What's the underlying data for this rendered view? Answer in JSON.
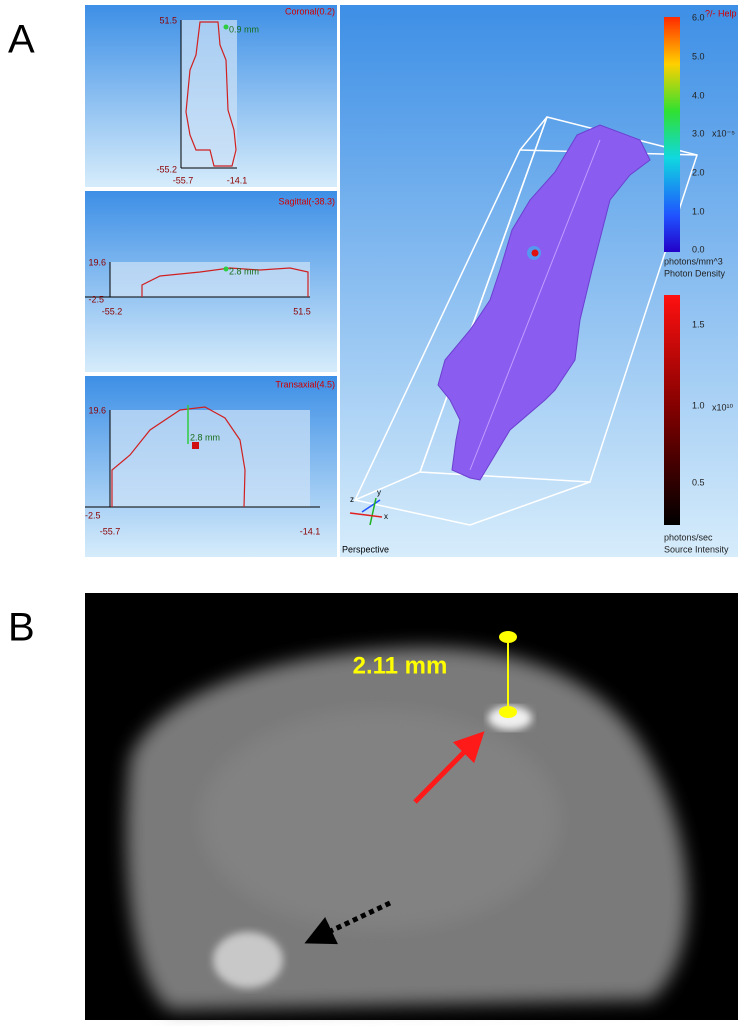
{
  "panel_labels": [
    "A",
    "B"
  ],
  "panel_a": {
    "views": [
      {
        "title": "Coronal(0.2)",
        "y_axis": [
          "51.5",
          "-55.2"
        ],
        "x_axis": [
          "-55.7",
          "-14.1"
        ],
        "measure": "0.9 mm"
      },
      {
        "title": "Sagittal(-38.3)",
        "y_axis": [
          "19.6",
          "-2.5"
        ],
        "x_axis": [
          "-55.2",
          "51.5"
        ],
        "measure": "2.8 mm"
      },
      {
        "title": "Transaxial(4.5)",
        "y_axis": [
          "19.6",
          "-2.5"
        ],
        "x_axis": [
          "-55.7",
          "-14.1"
        ],
        "measure": "2.8 mm"
      }
    ],
    "perspective": {
      "label": "Perspective",
      "help": "?/- Help",
      "axes": [
        "z",
        "y",
        "x"
      ]
    },
    "density_scale": {
      "ticks": [
        "6.0",
        "5.0",
        "4.0",
        "3.0",
        "2.0",
        "1.0",
        "0.0"
      ],
      "multiplier": "x10⁻⁵",
      "unit": "photons/mm^3",
      "name": "Photon Density"
    },
    "intensity_scale": {
      "ticks": [
        "1.5",
        "1.0",
        "0.5"
      ],
      "multiplier": "x10¹⁰",
      "unit": "photons/sec",
      "name": "Source Intensity"
    }
  },
  "panel_b": {
    "measurement": "2.11 mm"
  }
}
